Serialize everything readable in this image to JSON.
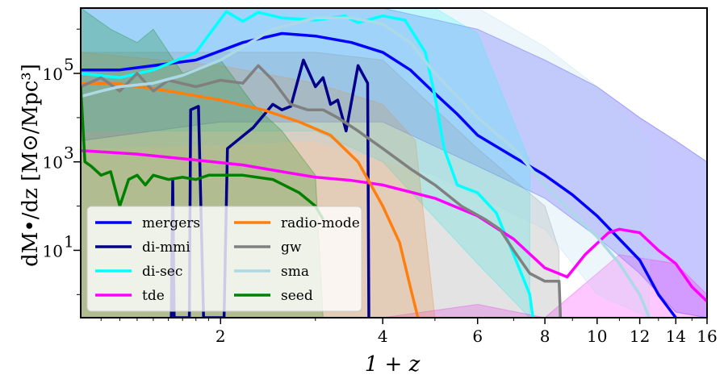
{
  "chart_data": {
    "type": "line",
    "xlabel": "1 + z",
    "ylabel": "dM•/dz  [M⊙/Mpc³]",
    "xscale": "log",
    "yscale": "log",
    "xlim": [
      1.1,
      16
    ],
    "ylim": [
      0.3,
      3000000
    ],
    "x_ticks": [
      2,
      4,
      6,
      8,
      10,
      12,
      14,
      16
    ],
    "x_tick_labels": [
      "2",
      "4",
      "6",
      "8",
      "10",
      "12",
      "14",
      "16"
    ],
    "y_ticks": [
      10,
      1000,
      100000
    ],
    "y_tick_labels": [
      "10",
      "10",
      "10"
    ],
    "y_tick_exponents": [
      "1",
      "3",
      "5"
    ],
    "legend": {
      "placement": "lower-left",
      "columns": 2
    },
    "series": [
      {
        "name": "mergers",
        "color": "#0000ff",
        "band_lo": [
          [
            1.1,
            3000
          ],
          [
            2,
            8000
          ],
          [
            4,
            8000
          ],
          [
            6,
            800
          ],
          [
            8,
            150
          ],
          [
            10,
            20
          ],
          [
            12,
            3
          ],
          [
            14,
            0.4
          ],
          [
            16,
            0.3
          ]
        ],
        "band_hi": [
          [
            1.1,
            3000000
          ],
          [
            4,
            3000000
          ],
          [
            6,
            1000000
          ],
          [
            8,
            200000
          ],
          [
            10,
            50000
          ],
          [
            12,
            10000
          ],
          [
            14,
            3000
          ],
          [
            16,
            1000
          ]
        ],
        "points": [
          [
            1.1,
            120000
          ],
          [
            1.3,
            120000
          ],
          [
            1.5,
            150000
          ],
          [
            1.8,
            200000
          ],
          [
            2.2,
            500000
          ],
          [
            2.6,
            800000
          ],
          [
            3,
            700000
          ],
          [
            3.5,
            500000
          ],
          [
            4,
            300000
          ],
          [
            4.5,
            120000
          ],
          [
            5,
            35000
          ],
          [
            5.5,
            12000
          ],
          [
            6,
            4000
          ],
          [
            7,
            1300
          ],
          [
            8,
            500
          ],
          [
            9,
            180
          ],
          [
            10,
            60
          ],
          [
            11,
            18
          ],
          [
            12,
            6
          ],
          [
            13,
            1
          ],
          [
            14,
            0.3
          ]
        ]
      },
      {
        "name": "di-mmi",
        "color": "#00008b",
        "points": [
          [
            1.62,
            0.3
          ],
          [
            1.63,
            400
          ],
          [
            1.64,
            0.3
          ],
          [
            1.75,
            0.3
          ],
          [
            1.76,
            15000
          ],
          [
            1.82,
            18000
          ],
          [
            1.86,
            0.3
          ],
          [
            2.03,
            0.3
          ],
          [
            2.06,
            2000
          ],
          [
            2.3,
            6000
          ],
          [
            2.5,
            20000
          ],
          [
            2.6,
            15000
          ],
          [
            2.7,
            18000
          ],
          [
            2.85,
            200000
          ],
          [
            3.0,
            50000
          ],
          [
            3.1,
            80000
          ],
          [
            3.2,
            20000
          ],
          [
            3.3,
            25000
          ],
          [
            3.42,
            5000
          ],
          [
            3.6,
            150000
          ],
          [
            3.75,
            60000
          ],
          [
            3.77,
            0.3
          ]
        ]
      },
      {
        "name": "di-sec",
        "color": "#00ffff",
        "band_lo": [
          [
            1.1,
            5000
          ],
          [
            3,
            5000
          ],
          [
            4,
            1000
          ],
          [
            6,
            5
          ],
          [
            7.5,
            0.3
          ]
        ],
        "band_hi": [
          [
            1.1,
            3000000
          ],
          [
            4,
            3000000
          ],
          [
            5,
            3000000
          ],
          [
            6,
            800000
          ],
          [
            7.5,
            1000
          ]
        ],
        "points": [
          [
            1.1,
            100000
          ],
          [
            1.3,
            80000
          ],
          [
            1.5,
            120000
          ],
          [
            1.8,
            300000
          ],
          [
            2.05,
            2500000
          ],
          [
            2.2,
            1500000
          ],
          [
            2.35,
            2400000
          ],
          [
            2.6,
            1800000
          ],
          [
            3,
            1600000
          ],
          [
            3.4,
            2000000
          ],
          [
            3.6,
            1400000
          ],
          [
            4.0,
            2000000
          ],
          [
            4.4,
            1600000
          ],
          [
            4.8,
            300000
          ],
          [
            5.0,
            30000
          ],
          [
            5.2,
            2000
          ],
          [
            5.5,
            300
          ],
          [
            6,
            200
          ],
          [
            6.5,
            70
          ],
          [
            7,
            8
          ],
          [
            7.5,
            1
          ],
          [
            7.6,
            0.3
          ]
        ]
      },
      {
        "name": "tde",
        "color": "#ff00ff",
        "band_lo": [
          [
            1.1,
            0.3
          ],
          [
            16,
            0.3
          ]
        ],
        "band_hi": [
          [
            1.1,
            0.3
          ],
          [
            4,
            0.3
          ],
          [
            6,
            0.6
          ],
          [
            8,
            0.3
          ],
          [
            11,
            8
          ],
          [
            14,
            5
          ],
          [
            16,
            1
          ]
        ],
        "points": [
          [
            1.1,
            1800
          ],
          [
            1.4,
            1500
          ],
          [
            1.8,
            1100
          ],
          [
            2.2,
            850
          ],
          [
            2.6,
            600
          ],
          [
            3,
            450
          ],
          [
            3.5,
            380
          ],
          [
            4,
            300
          ],
          [
            5,
            150
          ],
          [
            6,
            60
          ],
          [
            7,
            18
          ],
          [
            8,
            4
          ],
          [
            8.8,
            2.5
          ],
          [
            9.5,
            8
          ],
          [
            10.5,
            25
          ],
          [
            11,
            30
          ],
          [
            12,
            25
          ],
          [
            13,
            10
          ],
          [
            14,
            5
          ],
          [
            15,
            1.5
          ],
          [
            16,
            0.7
          ]
        ]
      },
      {
        "name": "radio-mode",
        "color": "#ff7f0e",
        "band_lo": [
          [
            1.1,
            0.3
          ],
          [
            4.5,
            0.3
          ]
        ],
        "band_hi": [
          [
            1.1,
            300000
          ],
          [
            2,
            150000
          ],
          [
            3,
            60000
          ],
          [
            4,
            20000
          ],
          [
            4.6,
            3000
          ],
          [
            5,
            0.3
          ]
        ],
        "points": [
          [
            1.1,
            60000
          ],
          [
            1.3,
            58000
          ],
          [
            1.6,
            40000
          ],
          [
            2.0,
            25000
          ],
          [
            2.4,
            15000
          ],
          [
            2.8,
            8000
          ],
          [
            3.2,
            4000
          ],
          [
            3.6,
            1000
          ],
          [
            4.0,
            100
          ],
          [
            4.3,
            15
          ],
          [
            4.5,
            1.5
          ],
          [
            4.65,
            0.3
          ]
        ]
      },
      {
        "name": "gw",
        "color": "#808080",
        "band_lo": [
          [
            1.1,
            0.3
          ],
          [
            8.5,
            0.3
          ]
        ],
        "band_hi": [
          [
            1.1,
            300000
          ],
          [
            3,
            300000
          ],
          [
            4,
            200000
          ],
          [
            6,
            2000
          ],
          [
            8,
            100
          ],
          [
            8.5,
            10
          ]
        ],
        "points": [
          [
            1.1,
            50000
          ],
          [
            1.2,
            80000
          ],
          [
            1.3,
            40000
          ],
          [
            1.4,
            100000
          ],
          [
            1.5,
            40000
          ],
          [
            1.6,
            70000
          ],
          [
            1.8,
            50000
          ],
          [
            2.0,
            70000
          ],
          [
            2.2,
            60000
          ],
          [
            2.35,
            150000
          ],
          [
            2.5,
            70000
          ],
          [
            2.7,
            20000
          ],
          [
            2.9,
            15000
          ],
          [
            3.1,
            15000
          ],
          [
            3.3,
            10000
          ],
          [
            3.6,
            5000
          ],
          [
            4.0,
            2000
          ],
          [
            4.5,
            700
          ],
          [
            5.0,
            300
          ],
          [
            5.6,
            100
          ],
          [
            6.2,
            50
          ],
          [
            6.6,
            30
          ],
          [
            7,
            10
          ],
          [
            7.5,
            3
          ],
          [
            8.0,
            2
          ],
          [
            8.5,
            2
          ],
          [
            8.55,
            0.3
          ]
        ]
      },
      {
        "name": "sma",
        "color": "#add8e6",
        "band_lo": [
          [
            1.1,
            2000
          ],
          [
            3,
            3000
          ],
          [
            5,
            500
          ],
          [
            8,
            30
          ],
          [
            10,
            1
          ],
          [
            12.5,
            0.3
          ]
        ],
        "band_hi": [
          [
            1.1,
            3000000
          ],
          [
            6,
            3000000
          ],
          [
            8,
            400000
          ],
          [
            10,
            50000
          ],
          [
            12.5,
            3000
          ]
        ],
        "points": [
          [
            1.1,
            30000
          ],
          [
            1.2,
            40000
          ],
          [
            1.3,
            50000
          ],
          [
            1.5,
            60000
          ],
          [
            1.7,
            90000
          ],
          [
            2,
            200000
          ],
          [
            2.5,
            1000000
          ],
          [
            3,
            1800000
          ],
          [
            3.5,
            1800000
          ],
          [
            4,
            1300000
          ],
          [
            4.5,
            500000
          ],
          [
            5,
            100000
          ],
          [
            6,
            10000
          ],
          [
            7,
            2000
          ],
          [
            8,
            300
          ],
          [
            9,
            70
          ],
          [
            10,
            20
          ],
          [
            11,
            5
          ],
          [
            12,
            1
          ],
          [
            12.5,
            0.3
          ]
        ]
      },
      {
        "name": "seed",
        "color": "#008000",
        "band_lo": [
          [
            1.1,
            0.3
          ],
          [
            3,
            0.3
          ]
        ],
        "band_hi": [
          [
            1.1,
            3000000
          ],
          [
            1.25,
            1000000
          ],
          [
            1.4,
            500000
          ],
          [
            1.5,
            1000000
          ],
          [
            1.7,
            100000
          ],
          [
            2.0,
            200000
          ],
          [
            2.3,
            20000
          ],
          [
            2.6,
            5000
          ],
          [
            3.0,
            500
          ],
          [
            3.1,
            0.3
          ]
        ],
        "points": [
          [
            1.1,
            50000
          ],
          [
            1.12,
            1000
          ],
          [
            1.15,
            800
          ],
          [
            1.2,
            500
          ],
          [
            1.25,
            600
          ],
          [
            1.3,
            100
          ],
          [
            1.35,
            400
          ],
          [
            1.4,
            500
          ],
          [
            1.45,
            300
          ],
          [
            1.5,
            500
          ],
          [
            1.6,
            400
          ],
          [
            1.7,
            450
          ],
          [
            1.8,
            400
          ],
          [
            1.9,
            500
          ],
          [
            2.0,
            500
          ],
          [
            2.2,
            500
          ],
          [
            2.5,
            400
          ],
          [
            2.8,
            200
          ],
          [
            3.0,
            100
          ],
          [
            3.1,
            50
          ]
        ]
      }
    ]
  }
}
